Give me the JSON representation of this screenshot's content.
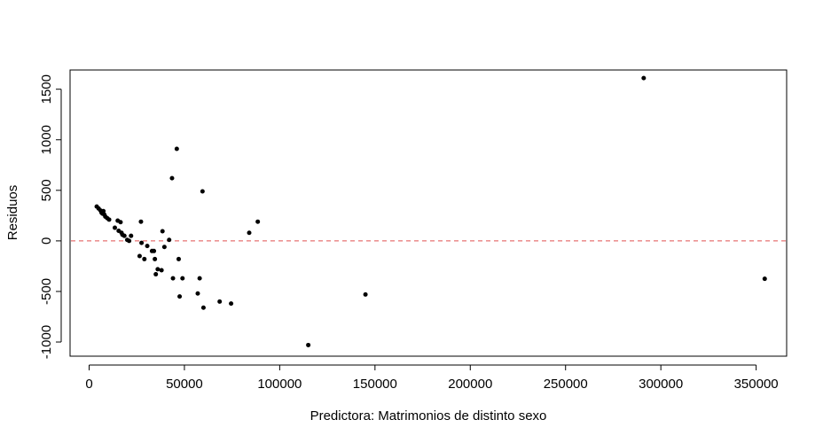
{
  "chart_data": {
    "type": "scatter",
    "title": "",
    "xlabel": "Predictora: Matrimonios de distinto sexo",
    "ylabel": "Residuos",
    "xlim": [
      -10000,
      366000
    ],
    "ylim": [
      -1140,
      1690
    ],
    "xticks": [
      0,
      50000,
      100000,
      150000,
      200000,
      250000,
      300000,
      350000
    ],
    "yticks": [
      -1000,
      -500,
      0,
      500,
      1000,
      1500
    ],
    "xtick_labels": [
      "0",
      "50000",
      "100000",
      "150000",
      "200000",
      "250000",
      "300000",
      "350000"
    ],
    "ytick_labels": [
      "-1000",
      "-500",
      "0",
      "500",
      "1000",
      "1500"
    ],
    "grid": false,
    "legend": "none",
    "reference_line": {
      "y": 0,
      "color": "#e05050",
      "style": "dashed"
    },
    "point_color": "#000000",
    "points": [
      {
        "x": 4000,
        "y": 340
      },
      {
        "x": 5000,
        "y": 320
      },
      {
        "x": 6000,
        "y": 300
      },
      {
        "x": 6500,
        "y": 280
      },
      {
        "x": 7000,
        "y": 270
      },
      {
        "x": 7500,
        "y": 295
      },
      {
        "x": 8000,
        "y": 260
      },
      {
        "x": 8500,
        "y": 240
      },
      {
        "x": 9500,
        "y": 225
      },
      {
        "x": 10500,
        "y": 210
      },
      {
        "x": 13500,
        "y": 130
      },
      {
        "x": 15000,
        "y": 200
      },
      {
        "x": 15500,
        "y": 100
      },
      {
        "x": 16500,
        "y": 185
      },
      {
        "x": 17000,
        "y": 80
      },
      {
        "x": 17500,
        "y": 60
      },
      {
        "x": 18500,
        "y": 50
      },
      {
        "x": 20000,
        "y": 10
      },
      {
        "x": 21000,
        "y": 0
      },
      {
        "x": 22000,
        "y": 50
      },
      {
        "x": 26500,
        "y": -150
      },
      {
        "x": 27200,
        "y": 190
      },
      {
        "x": 27500,
        "y": -20
      },
      {
        "x": 29000,
        "y": -180
      },
      {
        "x": 30500,
        "y": -50
      },
      {
        "x": 33000,
        "y": -100
      },
      {
        "x": 34000,
        "y": -100
      },
      {
        "x": 34500,
        "y": -180
      },
      {
        "x": 35000,
        "y": -330
      },
      {
        "x": 36000,
        "y": -280
      },
      {
        "x": 38000,
        "y": -290
      },
      {
        "x": 38500,
        "y": 95
      },
      {
        "x": 39500,
        "y": -60
      },
      {
        "x": 42000,
        "y": 10
      },
      {
        "x": 43500,
        "y": 620
      },
      {
        "x": 44000,
        "y": -370
      },
      {
        "x": 46000,
        "y": 910
      },
      {
        "x": 47000,
        "y": -180
      },
      {
        "x": 47500,
        "y": -550
      },
      {
        "x": 49000,
        "y": -370
      },
      {
        "x": 57000,
        "y": -520
      },
      {
        "x": 58000,
        "y": -370
      },
      {
        "x": 59500,
        "y": 490
      },
      {
        "x": 60000,
        "y": -660
      },
      {
        "x": 68500,
        "y": -600
      },
      {
        "x": 74500,
        "y": -620
      },
      {
        "x": 84000,
        "y": 80
      },
      {
        "x": 88500,
        "y": 190
      },
      {
        "x": 115000,
        "y": -1030
      },
      {
        "x": 145000,
        "y": -530
      },
      {
        "x": 291000,
        "y": 1610
      },
      {
        "x": 354500,
        "y": -375
      }
    ]
  }
}
